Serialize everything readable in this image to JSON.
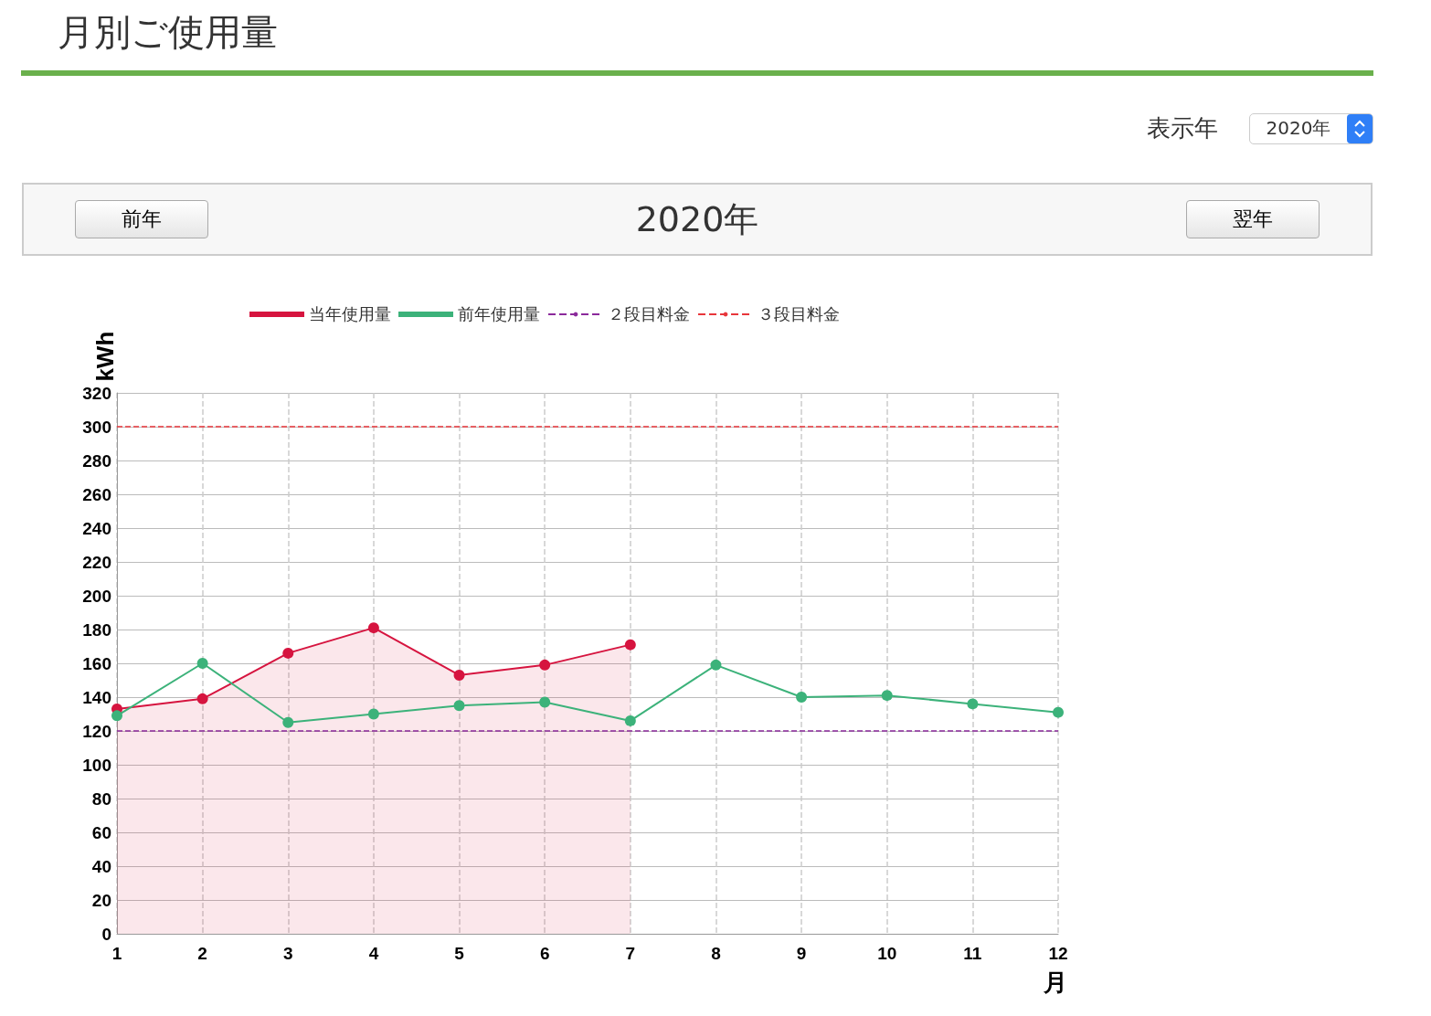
{
  "chart_data": {
    "type": "line",
    "title": "月別ご使用量",
    "subtitle": "2020年",
    "annotations": [
      "表示年",
      "2020年",
      "前年",
      "翌年"
    ],
    "xlabel": "月",
    "ylabel": "kWh",
    "x": [
      1,
      2,
      3,
      4,
      5,
      6,
      7,
      8,
      9,
      10,
      11,
      12
    ],
    "series": [
      {
        "name": "当年使用量",
        "type": "area",
        "color": "#d6143f",
        "values": [
          133,
          139,
          166,
          181,
          153,
          159,
          171,
          null,
          null,
          null,
          null,
          null
        ]
      },
      {
        "name": "前年使用量",
        "type": "line",
        "color": "#3cb27a",
        "values": [
          129,
          160,
          125,
          130,
          135,
          137,
          126,
          159,
          140,
          141,
          136,
          131
        ]
      }
    ],
    "ref_lines": [
      {
        "axis": "y",
        "value": 120,
        "label": "２段目料金",
        "color": "#8b2a9b",
        "line_style": "dashed"
      },
      {
        "axis": "y",
        "value": 300,
        "label": "３段目料金",
        "color": "#e8363b",
        "line_style": "dashed"
      }
    ],
    "xlim": [
      1,
      12
    ],
    "xticks": [
      1,
      2,
      3,
      4,
      5,
      6,
      7,
      8,
      9,
      10,
      11,
      12
    ],
    "ylim": [
      0,
      320
    ],
    "yticks": [
      0,
      20,
      40,
      60,
      80,
      100,
      120,
      140,
      160,
      180,
      200,
      220,
      240,
      260,
      280,
      300,
      320
    ],
    "grid": true,
    "legend": "top",
    "marker": "circle",
    "line_style": "solid"
  }
}
